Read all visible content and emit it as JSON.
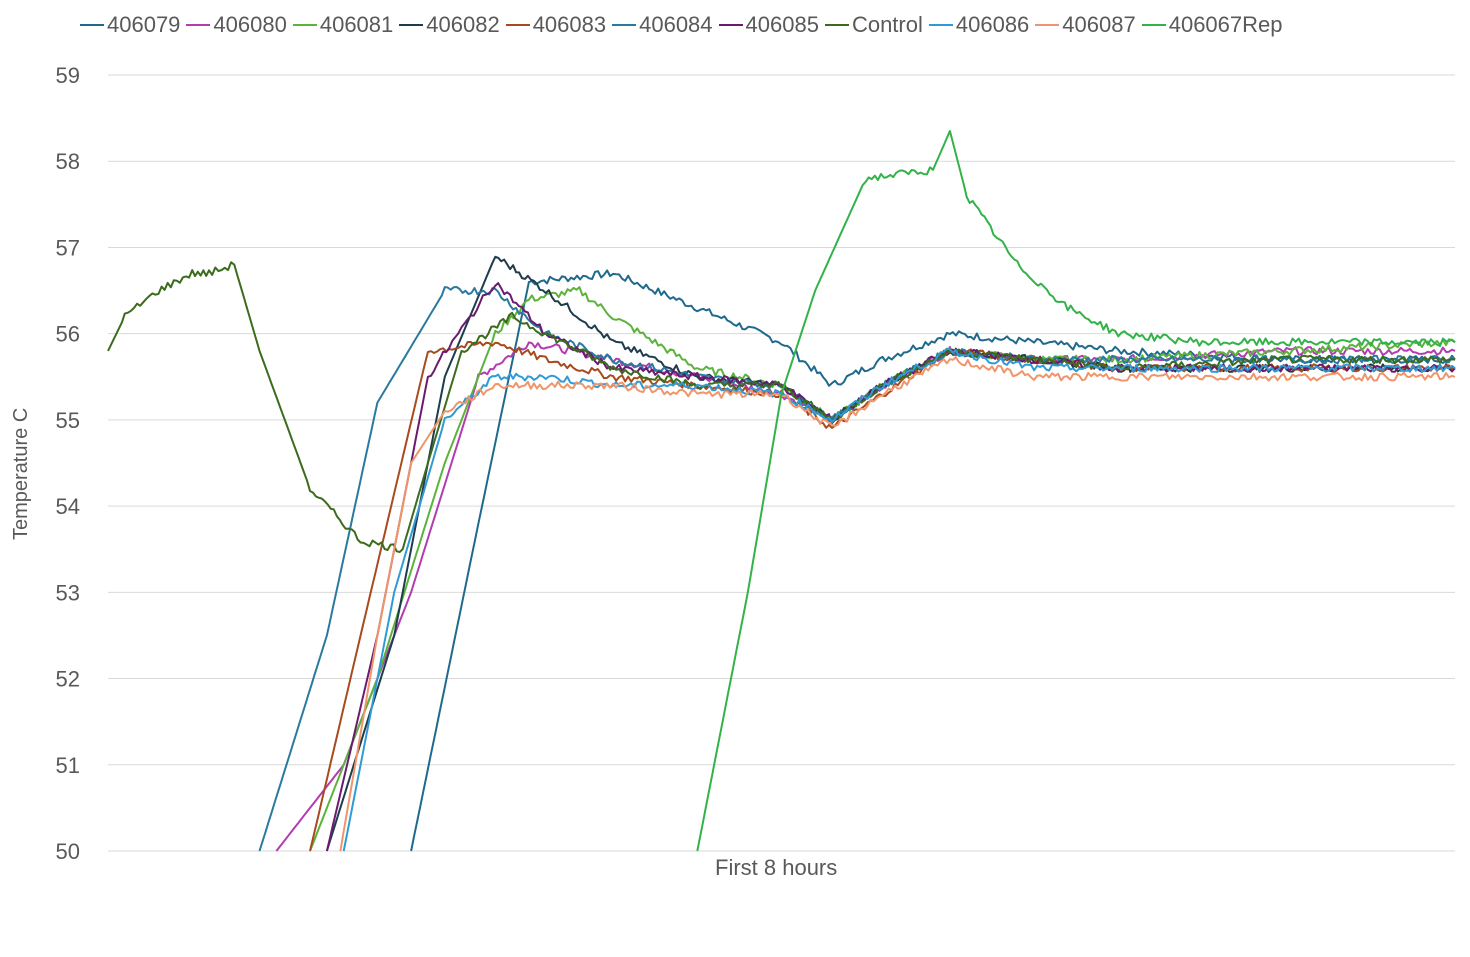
{
  "chart_data": {
    "type": "line",
    "title": "",
    "xlabel": "First 8 hours",
    "ylabel": "Temperature C",
    "ylim": [
      50,
      59
    ],
    "yticks": [
      "50",
      "51",
      "52",
      "53",
      "54",
      "55",
      "56",
      "57",
      "58",
      "59"
    ],
    "xlim": [
      0,
      8
    ],
    "grid": true,
    "legend_position": "top",
    "series": [
      {
        "name": "406079",
        "color": "#1f6a8c",
        "x": [
          1.8,
          2.2,
          2.5,
          3.0,
          3.5,
          4.0,
          4.3,
          4.6,
          5.0,
          5.5,
          6.0,
          7.0,
          8.0
        ],
        "y": [
          50.0,
          53.8,
          56.6,
          56.7,
          56.3,
          55.9,
          55.4,
          55.7,
          56.0,
          55.9,
          55.8,
          55.7,
          55.7
        ]
      },
      {
        "name": "406080",
        "color": "#b23cb0",
        "x": [
          1.0,
          1.4,
          1.8,
          2.2,
          2.5,
          3.0,
          3.5,
          4.0,
          4.3,
          4.6,
          5.0,
          5.5,
          6.0,
          7.0,
          8.0
        ],
        "y": [
          50.0,
          51.0,
          53.0,
          55.5,
          55.9,
          55.7,
          55.5,
          55.3,
          55.0,
          55.4,
          55.8,
          55.7,
          55.7,
          55.8,
          55.8
        ]
      },
      {
        "name": "406081",
        "color": "#5bb33b",
        "x": [
          1.2,
          1.6,
          2.0,
          2.3,
          2.5,
          2.8,
          3.0,
          3.5,
          4.0,
          4.3,
          4.6,
          5.0,
          5.5,
          6.0,
          7.0,
          8.0
        ],
        "y": [
          50.0,
          52.0,
          54.5,
          56.0,
          56.4,
          56.5,
          56.2,
          55.6,
          55.4,
          55.0,
          55.4,
          55.8,
          55.7,
          55.7,
          55.8,
          55.9
        ]
      },
      {
        "name": "406082",
        "color": "#1e3c4e",
        "x": [
          1.3,
          1.7,
          2.0,
          2.3,
          2.6,
          3.0,
          3.5,
          4.0,
          4.3,
          4.6,
          5.0,
          5.5,
          6.0,
          7.0,
          8.0
        ],
        "y": [
          50.0,
          52.5,
          55.5,
          56.9,
          56.5,
          55.9,
          55.5,
          55.4,
          55.0,
          55.4,
          55.8,
          55.7,
          55.6,
          55.6,
          55.6
        ]
      },
      {
        "name": "406083",
        "color": "#a84a1e",
        "x": [
          1.2,
          1.5,
          1.9,
          2.3,
          2.6,
          3.0,
          3.5,
          4.0,
          4.3,
          4.6,
          5.0,
          5.5,
          6.0,
          7.0,
          8.0
        ],
        "y": [
          50.0,
          52.5,
          55.8,
          55.9,
          55.7,
          55.5,
          55.4,
          55.3,
          54.9,
          55.3,
          55.8,
          55.7,
          55.6,
          55.6,
          55.6
        ]
      },
      {
        "name": "406084",
        "color": "#2a7aa0",
        "x": [
          0.9,
          1.3,
          1.6,
          2.0,
          2.3,
          2.6,
          3.0,
          3.5,
          4.0,
          4.3,
          4.6,
          5.0,
          5.5,
          6.0,
          7.0,
          8.0
        ],
        "y": [
          50.0,
          52.5,
          55.2,
          56.5,
          56.5,
          56.0,
          55.7,
          55.5,
          55.4,
          55.0,
          55.4,
          55.8,
          55.7,
          55.7,
          55.7,
          55.7
        ]
      },
      {
        "name": "406085",
        "color": "#6a1b6e",
        "x": [
          1.3,
          1.6,
          1.9,
          2.3,
          2.6,
          3.0,
          3.5,
          4.0,
          4.3,
          4.6,
          5.0,
          5.5,
          6.0,
          7.0,
          8.0
        ],
        "y": [
          50.0,
          52.5,
          55.5,
          56.6,
          56.0,
          55.6,
          55.5,
          55.4,
          55.0,
          55.4,
          55.8,
          55.7,
          55.6,
          55.6,
          55.6
        ]
      },
      {
        "name": "Control",
        "color": "#3c6b1e",
        "x": [
          0.0,
          0.1,
          0.3,
          0.5,
          0.6,
          0.75,
          0.9,
          1.2,
          1.5,
          1.75,
          1.9,
          2.1,
          2.4,
          2.7,
          3.0,
          3.5,
          4.0,
          4.3,
          4.6,
          5.0,
          5.5,
          6.0,
          7.0,
          8.0
        ],
        "y": [
          55.8,
          56.2,
          56.5,
          56.7,
          56.7,
          56.8,
          55.8,
          54.2,
          53.6,
          53.5,
          54.5,
          55.8,
          56.2,
          55.9,
          55.6,
          55.4,
          55.4,
          55.0,
          55.4,
          55.8,
          55.7,
          55.6,
          55.7,
          55.7
        ]
      },
      {
        "name": "406086",
        "color": "#2e9bd6",
        "x": [
          1.4,
          1.7,
          2.0,
          2.3,
          2.6,
          3.0,
          3.5,
          4.0,
          4.3,
          4.6,
          5.0,
          5.5,
          6.0,
          7.0,
          8.0
        ],
        "y": [
          50.0,
          53.0,
          55.0,
          55.5,
          55.5,
          55.4,
          55.4,
          55.3,
          55.0,
          55.4,
          55.8,
          55.6,
          55.6,
          55.6,
          55.6
        ]
      },
      {
        "name": "406087",
        "color": "#f0956a",
        "x": [
          1.38,
          1.6,
          1.8,
          2.0,
          2.3,
          2.6,
          3.0,
          3.5,
          4.0,
          4.3,
          4.6,
          5.0,
          5.5,
          6.0,
          7.0,
          8.0
        ],
        "y": [
          50.0,
          52.5,
          54.5,
          55.1,
          55.4,
          55.4,
          55.4,
          55.3,
          55.3,
          54.9,
          55.3,
          55.7,
          55.5,
          55.5,
          55.5,
          55.5
        ]
      },
      {
        "name": "406067Rep",
        "color": "#33b24a",
        "x": [
          3.5,
          3.8,
          4.0,
          4.2,
          4.5,
          4.9,
          5.0,
          5.1,
          5.4,
          5.7,
          6.0,
          6.5,
          7.0,
          7.5,
          8.0
        ],
        "y": [
          50.0,
          53.0,
          55.3,
          56.5,
          57.8,
          57.9,
          58.35,
          57.6,
          56.8,
          56.3,
          56.0,
          55.9,
          55.9,
          55.9,
          55.9
        ]
      }
    ]
  }
}
